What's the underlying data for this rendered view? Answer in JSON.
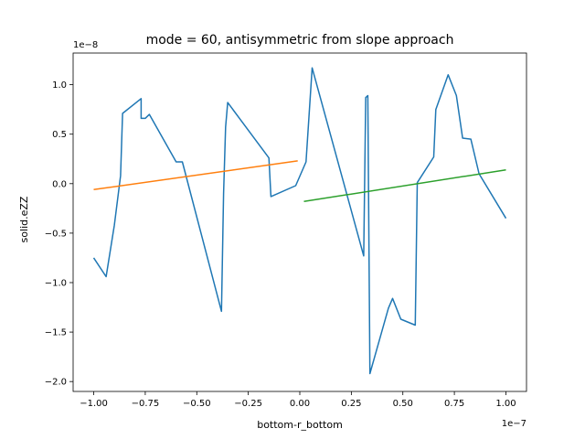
{
  "chart_data": {
    "type": "line",
    "title": "mode = 60, antisymmetric from slope approach",
    "xlabel": "bottom-r_bottom",
    "ylabel": "solid.eZZ",
    "x_scale_label": "1e−7",
    "y_scale_label": "1e−8",
    "xlim": [
      -1.1,
      1.1
    ],
    "ylim": [
      -2.1,
      1.32
    ],
    "x_ticks": [
      -1.0,
      -0.75,
      -0.5,
      -0.25,
      0.0,
      0.25,
      0.5,
      0.75,
      1.0
    ],
    "x_tick_labels": [
      "−1.00",
      "−0.75",
      "−0.50",
      "−0.25",
      "0.00",
      "0.25",
      "0.50",
      "0.75",
      "1.00"
    ],
    "y_ticks": [
      -2.0,
      -1.5,
      -1.0,
      -0.5,
      0.0,
      0.5,
      1.0
    ],
    "y_tick_labels": [
      "−2.0",
      "−1.5",
      "−1.0",
      "−0.5",
      "0.0",
      "0.5",
      "1.0"
    ],
    "grid": false,
    "legend": "none",
    "series": [
      {
        "color": "#1f77b4",
        "x": [
          -1.0,
          -0.94,
          -0.9,
          -0.87,
          -0.86,
          -0.77,
          -0.77,
          -0.75,
          -0.73,
          -0.6,
          -0.57,
          -0.38,
          -0.37,
          -0.36,
          -0.35,
          -0.15,
          -0.14,
          -0.02,
          0.03,
          0.06,
          0.31,
          0.32,
          0.33,
          0.34,
          0.43,
          0.45,
          0.49,
          0.56,
          0.57,
          0.65,
          0.66,
          0.72,
          0.76,
          0.79,
          0.83,
          0.87,
          1.0
        ],
        "y": [
          -0.75,
          -0.94,
          -0.42,
          0.08,
          0.71,
          0.86,
          0.66,
          0.66,
          0.7,
          0.22,
          0.22,
          -1.29,
          -0.1,
          0.57,
          0.82,
          0.26,
          -0.13,
          -0.02,
          0.22,
          1.17,
          -0.73,
          0.87,
          0.89,
          -1.92,
          -1.26,
          -1.16,
          -1.37,
          -1.43,
          0.01,
          0.27,
          0.75,
          1.1,
          0.89,
          0.46,
          0.45,
          0.1,
          -0.35
        ]
      },
      {
        "color": "#ff7f0e",
        "x": [
          -1.0,
          -0.01
        ],
        "y": [
          -0.06,
          0.23
        ]
      },
      {
        "color": "#2ca02c",
        "x": [
          0.02,
          1.0
        ],
        "y": [
          -0.18,
          0.14
        ]
      }
    ]
  }
}
